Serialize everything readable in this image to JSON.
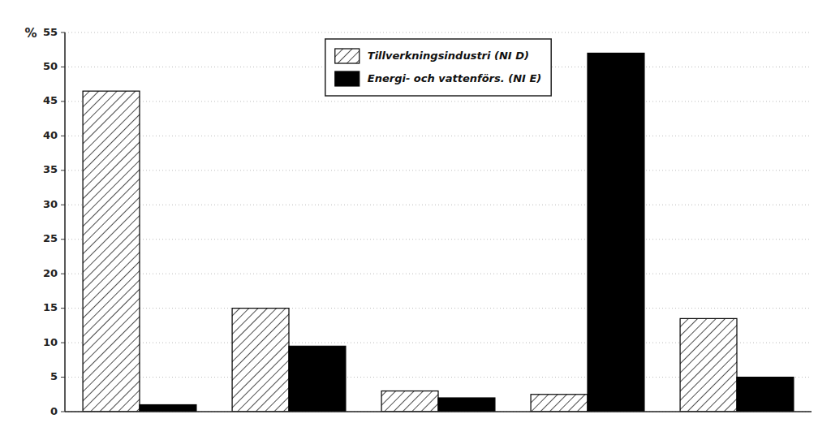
{
  "chart_data": {
    "type": "bar",
    "ylabel": "%",
    "categories": [
      null,
      null,
      null,
      null,
      null
    ],
    "series": [
      {
        "name": "Tillverkningsindustri (NI D)",
        "color": "white",
        "values": [
          46.5,
          15.0,
          3.0,
          2.5,
          13.5
        ]
      },
      {
        "name": "Energi- och vattenförs. (NI E)",
        "color": "black",
        "values": [
          1.0,
          9.5,
          2.0,
          52.0,
          5.0
        ]
      }
    ],
    "ylim": [
      0,
      55
    ],
    "yticks": [
      0,
      5,
      10,
      15,
      20,
      25,
      30,
      35,
      40,
      45,
      50,
      55
    ],
    "grid": true,
    "legend": "top",
    "tick_labels": "y"
  }
}
